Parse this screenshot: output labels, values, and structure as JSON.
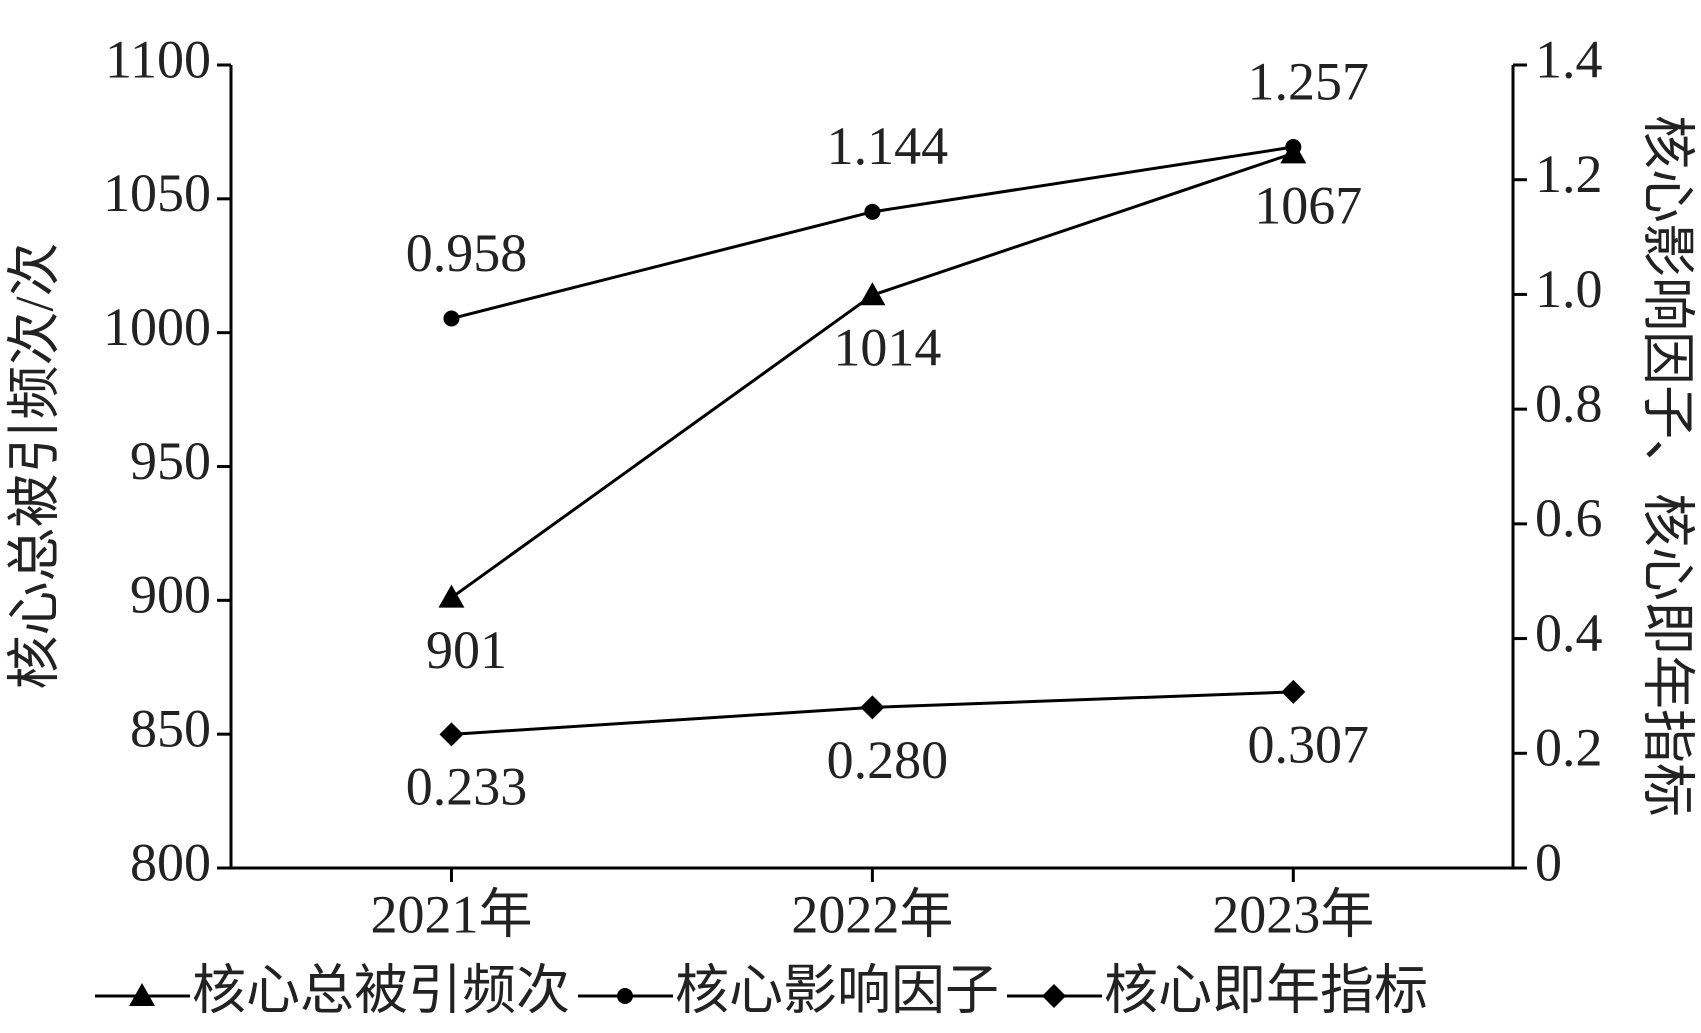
{
  "chart_data": {
    "type": "line",
    "categories": [
      "2021年",
      "2022年",
      "2023年"
    ],
    "y_label": "核心总被引频次/次",
    "y2_label": "核心影响因子、核心即年指标",
    "ylim": [
      800,
      1100
    ],
    "yticks": [
      800,
      850,
      900,
      950,
      1000,
      1050,
      1100
    ],
    "y2lim": [
      0,
      1.4
    ],
    "y2ticks": [
      0,
      0.2,
      0.4,
      0.6,
      0.8,
      {
        "value": 1,
        "label": "1.0"
      },
      1.2,
      1.4
    ],
    "legend": "bottom",
    "series": [
      {
        "name": "核心总被引频次",
        "color": "#000000",
        "marker": "triangle",
        "values": [
          901,
          1014,
          1067
        ]
      },
      {
        "name": "核心影响因子",
        "color": "#000000",
        "marker": "circle",
        "axis": "y2",
        "values": [
          0.958,
          1.144,
          1.257
        ]
      },
      {
        "name": "核心即年指标",
        "color": "#000000",
        "marker": "diamond",
        "axis": "y2",
        "values": [
          0.233,
          0.28,
          0.307
        ],
        "value_labels": [
          "0.233",
          "0.280",
          "0.307"
        ]
      }
    ]
  }
}
